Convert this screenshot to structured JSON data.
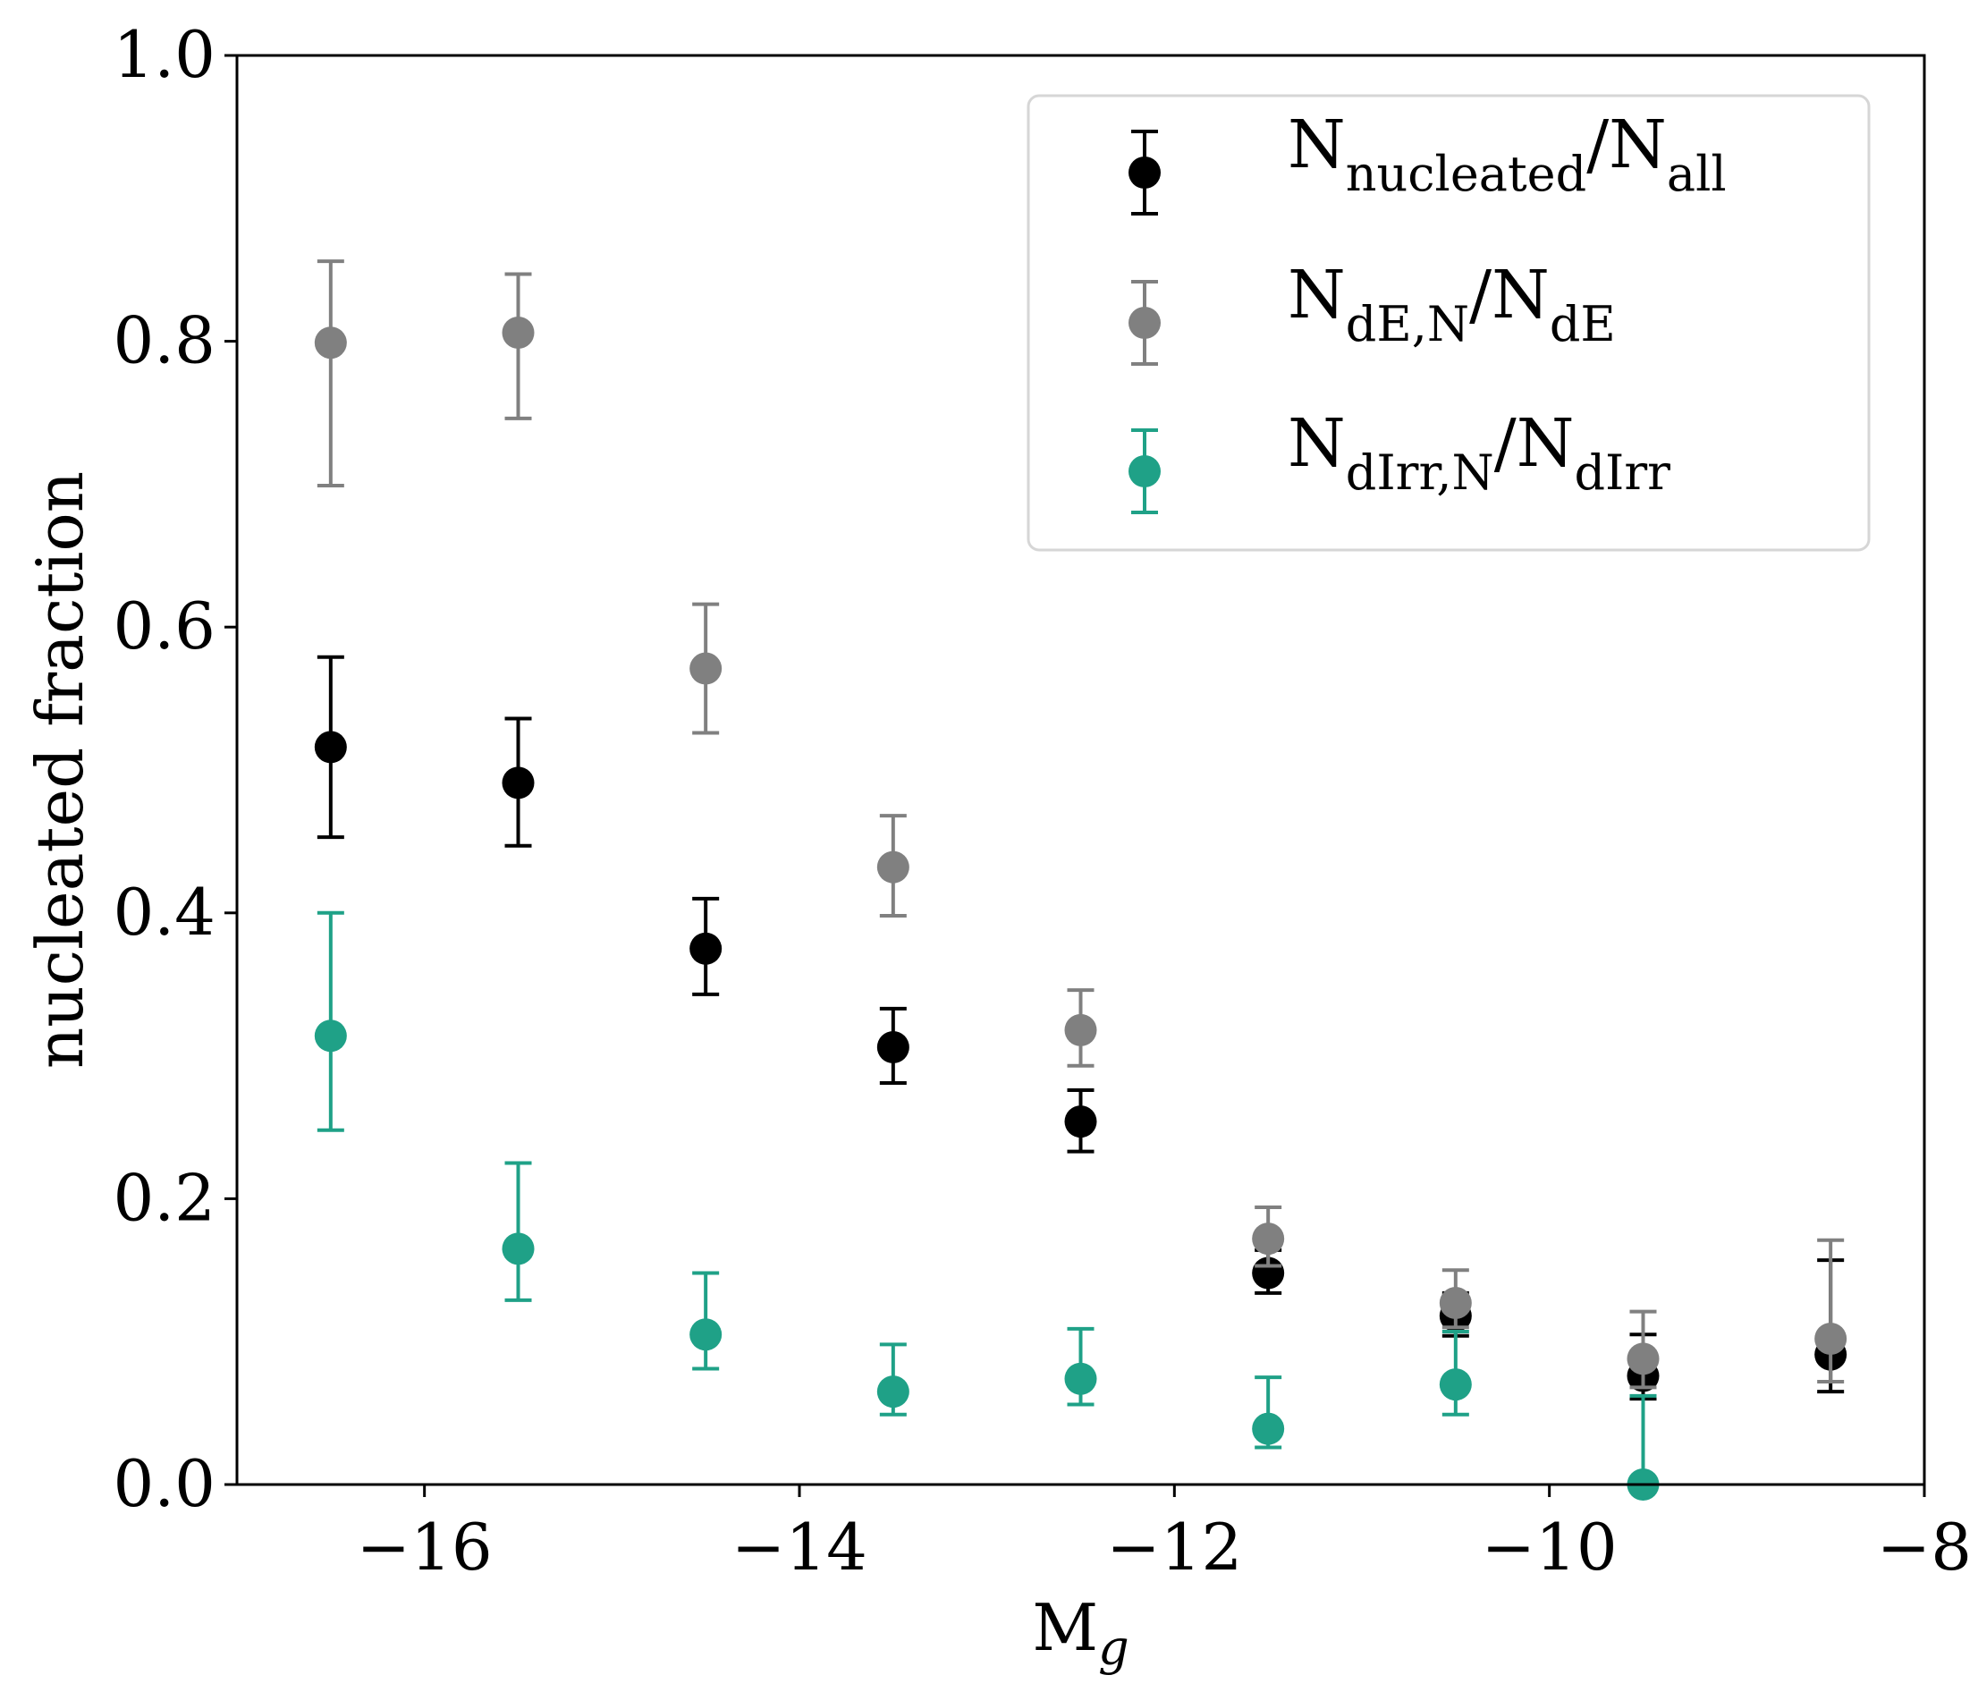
{
  "chart_data": {
    "type": "scatter",
    "title": "",
    "xlabel": {
      "main": "M",
      "sub": "g"
    },
    "ylabel": "nucleated fraction",
    "xlim": [
      -17,
      -8
    ],
    "ylim": [
      0.0,
      1.0
    ],
    "xticks": [
      -16,
      -14,
      -12,
      -10,
      -8
    ],
    "xtick_labels": [
      "−16",
      "−14",
      "−12",
      "−10",
      "−8"
    ],
    "yticks": [
      0.0,
      0.2,
      0.4,
      0.6,
      0.8,
      1.0
    ],
    "ytick_labels": [
      "0.0",
      "0.2",
      "0.4",
      "0.6",
      "0.8",
      "1.0"
    ],
    "grid": false,
    "legend_position": "top-right",
    "x": [
      -16.5,
      -15.5,
      -14.5,
      -13.5,
      -12.5,
      -11.5,
      -10.5,
      -9.5,
      -8.5
    ],
    "series": [
      {
        "name": "N_nucleated/N_all",
        "label_parts": [
          {
            "text": "N",
            "sub": false
          },
          {
            "text": "nucleated",
            "sub": true
          },
          {
            "text": "/N",
            "sub": false
          },
          {
            "text": "all",
            "sub": true
          }
        ],
        "color": "#000000",
        "values": [
          0.516,
          0.491,
          0.375,
          0.306,
          0.254,
          0.148,
          0.118,
          0.076,
          0.091
        ],
        "err_low": [
          0.453,
          0.447,
          0.343,
          0.281,
          0.233,
          0.134,
          0.104,
          0.06,
          0.065
        ],
        "err_high": [
          0.579,
          0.536,
          0.41,
          0.333,
          0.276,
          0.164,
          0.134,
          0.105,
          0.157
        ]
      },
      {
        "name": "N_dE,N/N_dE",
        "label_parts": [
          {
            "text": "N",
            "sub": false
          },
          {
            "text": "dE,N",
            "sub": true
          },
          {
            "text": "/N",
            "sub": false
          },
          {
            "text": "dE",
            "sub": true
          }
        ],
        "color": "#808080",
        "values": [
          0.799,
          0.806,
          0.571,
          0.432,
          0.318,
          0.172,
          0.127,
          0.088,
          0.102
        ],
        "err_low": [
          0.699,
          0.746,
          0.526,
          0.398,
          0.293,
          0.153,
          0.11,
          0.068,
          0.072
        ],
        "err_high": [
          0.856,
          0.847,
          0.616,
          0.468,
          0.346,
          0.194,
          0.15,
          0.121,
          0.171
        ]
      },
      {
        "name": "N_dIrr,N/N_dIrr",
        "label_parts": [
          {
            "text": "N",
            "sub": false
          },
          {
            "text": "dIrr,N",
            "sub": true
          },
          {
            "text": "/N",
            "sub": false
          },
          {
            "text": "dIrr",
            "sub": true
          }
        ],
        "color": "#1fa187",
        "values": [
          0.314,
          0.165,
          0.105,
          0.065,
          0.074,
          0.039,
          0.07,
          0.0,
          null
        ],
        "err_low": [
          0.248,
          0.129,
          0.081,
          0.049,
          0.056,
          0.026,
          0.049,
          0.0,
          null
        ],
        "err_high": [
          0.4,
          0.225,
          0.148,
          0.098,
          0.109,
          0.075,
          0.107,
          0.062,
          null
        ]
      }
    ]
  }
}
